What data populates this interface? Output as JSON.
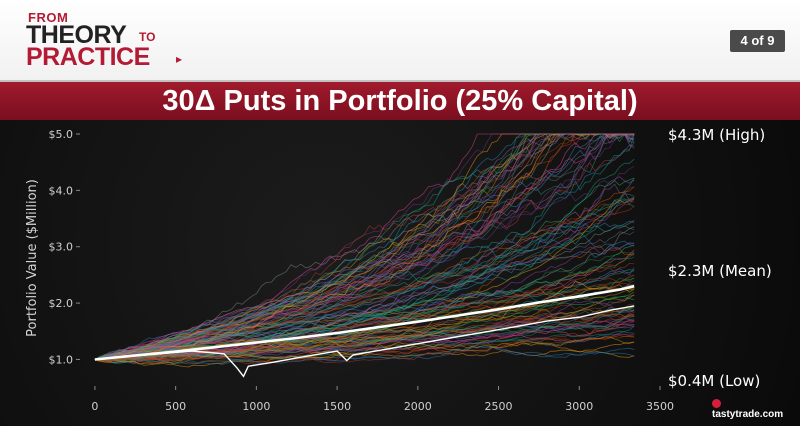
{
  "header": {
    "brand": {
      "from": "FROM",
      "theory": "THEORY",
      "to": "TO",
      "practice": "PRACTICE"
    },
    "page_counter": "4 of 9"
  },
  "title": "30Δ Puts in Portfolio (25% Capital)",
  "footer_logo": "tastytrade.com",
  "chart_data": {
    "type": "line",
    "title": "",
    "xlabel": "",
    "ylabel": "Portfolio Value ($Million)",
    "xlim": [
      -80,
      3500
    ],
    "ylim": [
      0.6,
      5.0
    ],
    "x_ticks": [
      0,
      500,
      1000,
      1500,
      2000,
      2500,
      3000,
      3500
    ],
    "x_tick_labels": [
      "0",
      "500",
      "1000",
      "1500",
      "2000",
      "2500",
      "3000",
      "3500"
    ],
    "y_ticks": [
      1.0,
      2.0,
      3.0,
      4.0,
      5.0
    ],
    "y_tick_labels": [
      "$1.0",
      "$2.0",
      "$3.0",
      "$4.0",
      "$5.0"
    ],
    "grid": false,
    "legend": "none",
    "simulation_path_count": 120,
    "series": [
      {
        "role": "mean",
        "color": "#ffffff",
        "x": [
          0,
          250,
          500,
          750,
          1000,
          1250,
          1500,
          1750,
          2000,
          2250,
          2500,
          2750,
          3000,
          3250,
          3340
        ],
        "values": [
          1.0,
          1.07,
          1.14,
          1.22,
          1.3,
          1.38,
          1.47,
          1.57,
          1.67,
          1.78,
          1.89,
          2.01,
          2.12,
          2.24,
          2.3
        ]
      },
      {
        "role": "median-path",
        "color": "#ffffff",
        "x": [
          0,
          200,
          400,
          600,
          800,
          880,
          920,
          950,
          1100,
          1300,
          1500,
          1560,
          1600,
          1800,
          2000,
          2200,
          2400,
          2600,
          2800,
          3000,
          3200,
          3340
        ],
        "values": [
          1.0,
          1.05,
          1.1,
          1.15,
          1.1,
          0.85,
          0.7,
          0.88,
          0.95,
          1.05,
          1.15,
          0.98,
          1.08,
          1.18,
          1.28,
          1.38,
          1.48,
          1.58,
          1.68,
          1.75,
          1.88,
          1.95
        ]
      }
    ],
    "annotations": [
      {
        "text": "$4.3M (High)",
        "value": 4.3
      },
      {
        "text": "$2.3M (Mean)",
        "value": 2.3
      },
      {
        "text": "$0.4M (Low)",
        "value": 0.4
      }
    ]
  }
}
